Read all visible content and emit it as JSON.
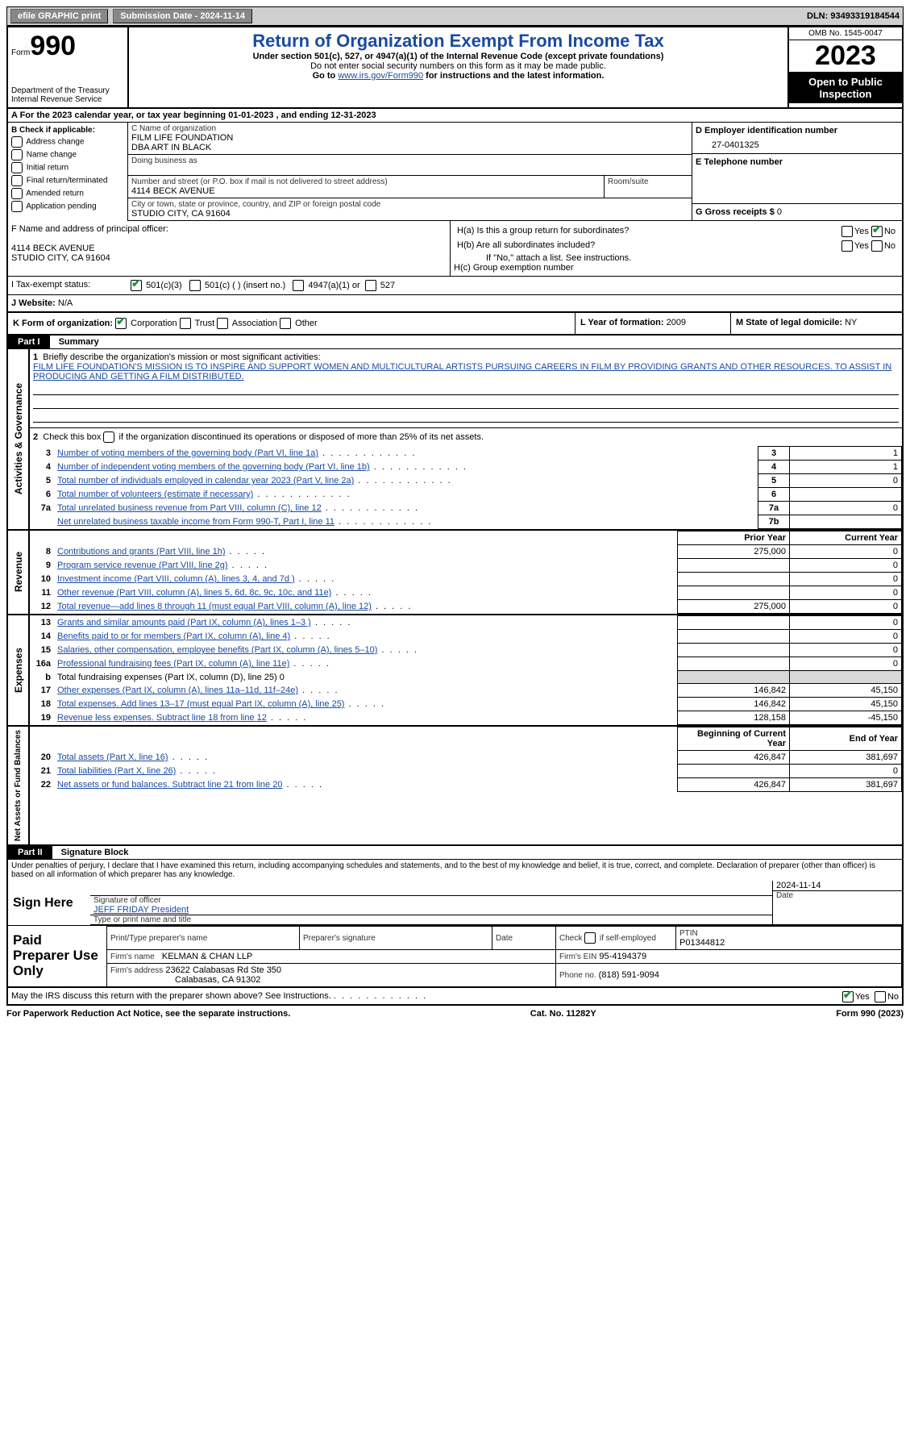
{
  "topbar": {
    "efile_label": "efile GRAPHIC print",
    "submission_label": "Submission Date - 2024-11-14",
    "dln_label": "DLN: 93493319184544"
  },
  "header": {
    "form_label": "Form",
    "form_number": "990",
    "dept": "Department of the Treasury Internal Revenue Service",
    "title": "Return of Organization Exempt From Income Tax",
    "subtitle": "Under section 501(c), 527, or 4947(a)(1) of the Internal Revenue Code (except private foundations)",
    "do_not": "Do not enter social security numbers on this form as it may be made public.",
    "goto": "Go to",
    "goto_link": "www.irs.gov/Form990",
    "goto_after": "for instructions and the latest information.",
    "omb": "OMB No. 1545-0047",
    "year": "2023",
    "otp": "Open to Public Inspection"
  },
  "row_a": "A For the 2023 calendar year, or tax year beginning 01-01-2023   , and ending 12-31-2023",
  "box_b": {
    "label": "B Check if applicable:",
    "opts": [
      "Address change",
      "Name change",
      "Initial return",
      "Final return/terminated",
      "Amended return",
      "Application pending"
    ]
  },
  "box_c": {
    "name_label": "C Name of organization",
    "name": "FILM LIFE FOUNDATION",
    "dba": "DBA ART IN BLACK",
    "dba_label": "Doing business as",
    "addr_label": "Number and street (or P.O. box if mail is not delivered to street address)",
    "addr": "4114 BECK AVENUE",
    "room_label": "Room/suite",
    "city_label": "City or town, state or province, country, and ZIP or foreign postal code",
    "city": "STUDIO CITY, CA  91604"
  },
  "box_d": {
    "label": "D Employer identification number",
    "val": "27-0401325"
  },
  "box_e": {
    "label": "E Telephone number",
    "val": ""
  },
  "box_g": {
    "label": "G Gross receipts $",
    "val": "0"
  },
  "box_f": {
    "label": "F  Name and address of principal officer:",
    "line2": "4114 BECK AVENUE",
    "line3": "STUDIO CITY, CA  91604"
  },
  "box_h": {
    "a": "H(a)  Is this a group return for subordinates?",
    "b": "H(b)  Are all subordinates included?",
    "b_note": "If \"No,\" attach a list. See instructions.",
    "c": "H(c)  Group exemption number",
    "yes": "Yes",
    "no": "No"
  },
  "box_i": {
    "label": "I     Tax-exempt status:",
    "o1": "501(c)(3)",
    "o2": "501(c) (  ) (insert no.)",
    "o3": "4947(a)(1) or",
    "o4": "527"
  },
  "box_j": {
    "label": "J     Website:",
    "val": "N/A"
  },
  "box_k": {
    "label": "K Form of organization:",
    "o1": "Corporation",
    "o2": "Trust",
    "o3": "Association",
    "o4": "Other"
  },
  "box_l": {
    "label": "L Year of formation:",
    "val": "2009"
  },
  "box_m": {
    "label": "M State of legal domicile:",
    "val": "NY"
  },
  "parts": {
    "p1": "Part I",
    "p1_title": "Summary",
    "p2": "Part II",
    "p2_title": "Signature Block"
  },
  "sectLabels": {
    "ag": "Activities & Governance",
    "rev": "Revenue",
    "exp": "Expenses",
    "net": "Net Assets or Fund Balances"
  },
  "line1": {
    "label": "Briefly describe the organization's mission or most significant activities:",
    "text": "FILM LIFE FOUNDATION'S MISSION IS TO INSPIRE AND SUPPORT WOMEN AND MULTICULTURAL ARTISTS PURSUING CAREERS IN FILM BY PROVIDING GRANTS AND OTHER RESOURCES. TO ASSIST IN PRODUCING AND GETTING A FILM DISTRIBUTED."
  },
  "line2": "Check this box      if the organization discontinued its operations or disposed of more than 25% of its net assets.",
  "govLines": [
    {
      "n": "3",
      "d": "Number of voting members of the governing body (Part VI, line 1a)",
      "k": "3",
      "v": "1"
    },
    {
      "n": "4",
      "d": "Number of independent voting members of the governing body (Part VI, line 1b)",
      "k": "4",
      "v": "1"
    },
    {
      "n": "5",
      "d": "Total number of individuals employed in calendar year 2023 (Part V, line 2a)",
      "k": "5",
      "v": "0"
    },
    {
      "n": "6",
      "d": "Total number of volunteers (estimate if necessary)",
      "k": "6",
      "v": ""
    },
    {
      "n": "7a",
      "d": "Total unrelated business revenue from Part VIII, column (C), line 12",
      "k": "7a",
      "v": "0"
    },
    {
      "n": "",
      "d": "Net unrelated business taxable income from Form 990-T, Part I, line 11",
      "k": "7b",
      "v": ""
    }
  ],
  "colHdr": {
    "prior": "Prior Year",
    "curr": "Current Year",
    "beg": "Beginning of Current Year",
    "end": "End of Year"
  },
  "revLines": [
    {
      "n": "8",
      "d": "Contributions and grants (Part VIII, line 1h)",
      "p": "275,000",
      "c": "0"
    },
    {
      "n": "9",
      "d": "Program service revenue (Part VIII, line 2g)",
      "p": "",
      "c": "0"
    },
    {
      "n": "10",
      "d": "Investment income (Part VIII, column (A), lines 3, 4, and 7d )",
      "p": "",
      "c": "0"
    },
    {
      "n": "11",
      "d": "Other revenue (Part VIII, column (A), lines 5, 6d, 8c, 9c, 10c, and 11e)",
      "p": "",
      "c": "0"
    },
    {
      "n": "12",
      "d": "Total revenue—add lines 8 through 11 (must equal Part VIII, column (A), line 12)",
      "p": "275,000",
      "c": "0"
    }
  ],
  "expLines": [
    {
      "n": "13",
      "d": "Grants and similar amounts paid (Part IX, column (A), lines 1–3 )",
      "p": "",
      "c": "0"
    },
    {
      "n": "14",
      "d": "Benefits paid to or for members (Part IX, column (A), line 4)",
      "p": "",
      "c": "0"
    },
    {
      "n": "15",
      "d": "Salaries, other compensation, employee benefits (Part IX, column (A), lines 5–10)",
      "p": "",
      "c": "0"
    },
    {
      "n": "16a",
      "d": "Professional fundraising fees (Part IX, column (A), line 11e)",
      "p": "",
      "c": "0"
    }
  ],
  "exp_b": {
    "n": "b",
    "d": "Total fundraising expenses (Part IX, column (D), line 25) 0"
  },
  "expLines2": [
    {
      "n": "17",
      "d": "Other expenses (Part IX, column (A), lines 11a–11d, 11f–24e)",
      "p": "146,842",
      "c": "45,150"
    },
    {
      "n": "18",
      "d": "Total expenses. Add lines 13–17 (must equal Part IX, column (A), line 25)",
      "p": "146,842",
      "c": "45,150"
    },
    {
      "n": "19",
      "d": "Revenue less expenses. Subtract line 18 from line 12",
      "p": "128,158",
      "c": "-45,150"
    }
  ],
  "netLines": [
    {
      "n": "20",
      "d": "Total assets (Part X, line 16)",
      "p": "426,847",
      "c": "381,697"
    },
    {
      "n": "21",
      "d": "Total liabilities (Part X, line 26)",
      "p": "",
      "c": "0"
    },
    {
      "n": "22",
      "d": "Net assets or fund balances. Subtract line 21 from line 20",
      "p": "426,847",
      "c": "381,697"
    }
  ],
  "sig": {
    "declare": "Under penalties of perjury, I declare that I have examined this return, including accompanying schedules and statements, and to the best of my knowledge and belief, it is true, correct, and complete. Declaration of preparer (other than officer) is based on all information of which preparer has any knowledge.",
    "sign_here": "Sign Here",
    "sig_officer": "Signature of officer",
    "officer": "JEFF FRIDAY President",
    "type_name": "Type or print name and title",
    "date": "Date",
    "date_v": "2024-11-14",
    "paid": "Paid Preparer Use Only",
    "prep_name_l": "Print/Type preparer's name",
    "prep_sig_l": "Preparer's signature",
    "check_if": "Check         if self-employed",
    "ptin_l": "PTIN",
    "ptin": "P01344812",
    "firm_name_l": "Firm's name",
    "firm_name": "KELMAN & CHAN LLP",
    "firm_ein_l": "Firm's EIN",
    "firm_ein": "95-4194379",
    "firm_addr_l": "Firm's address",
    "firm_addr": "23622 Calabasas Rd Ste 350",
    "firm_city": "Calabasas, CA  91302",
    "phone_l": "Phone no.",
    "phone": "(818) 591-9094",
    "discuss": "May the IRS discuss this return with the preparer shown above? See Instructions."
  },
  "footer": {
    "left": "For Paperwork Reduction Act Notice, see the separate instructions.",
    "mid": "Cat. No. 11282Y",
    "right": "Form 990 (2023)"
  }
}
